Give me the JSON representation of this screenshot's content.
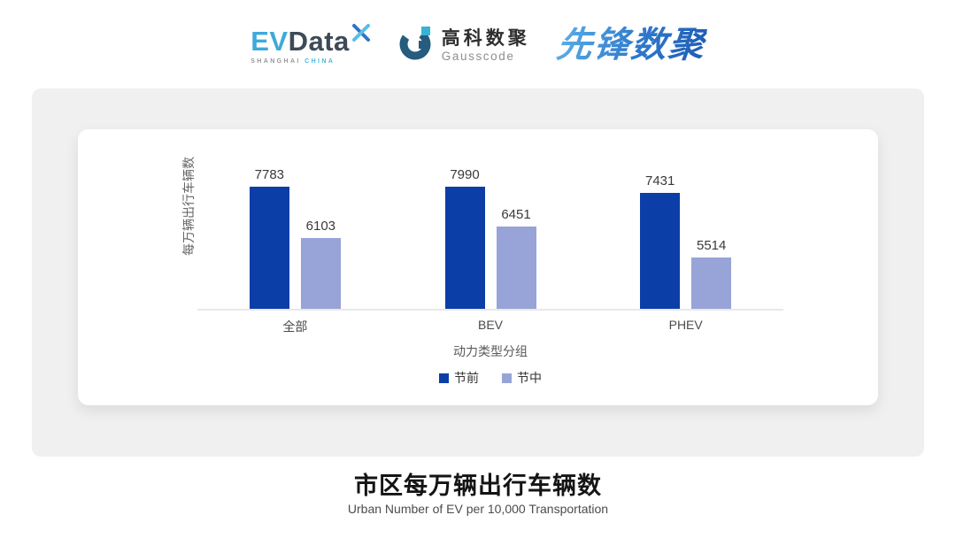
{
  "header": {
    "evdata_logo": {
      "ev": "EV",
      "data": "Data",
      "sub_left": "SHANGHAI",
      "sub_right": "CHINA"
    },
    "gausscode_logo": {
      "cn": "高科数聚",
      "en": "Gausscode"
    },
    "xianfeng_logo": {
      "text": "先锋数聚"
    }
  },
  "chart_data": {
    "type": "bar",
    "title": "市区每万辆出行车辆数",
    "subtitle": "Urban Number of EV per 10,000 Transportation",
    "xlabel": "动力类型分组",
    "ylabel": "每万辆出行车辆数",
    "categories": [
      "全部",
      "BEV",
      "PHEV"
    ],
    "series": [
      {
        "name": "节前",
        "color": "#0c3ea8",
        "values": [
          7783,
          7990,
          7431
        ]
      },
      {
        "name": "节中",
        "color": "#98a3d7",
        "values": [
          6103,
          6451,
          5514
        ]
      }
    ],
    "ylim": [
      4000,
      8200
    ],
    "grid": false,
    "legend_position": "bottom",
    "data_labels": true,
    "axis_line_color": "#e8e8e8"
  },
  "colors": {
    "panel_bg": "#f0f0f0",
    "card_bg": "#ffffff",
    "series_pre": "#0c3ea8",
    "series_mid": "#98a3d7"
  }
}
